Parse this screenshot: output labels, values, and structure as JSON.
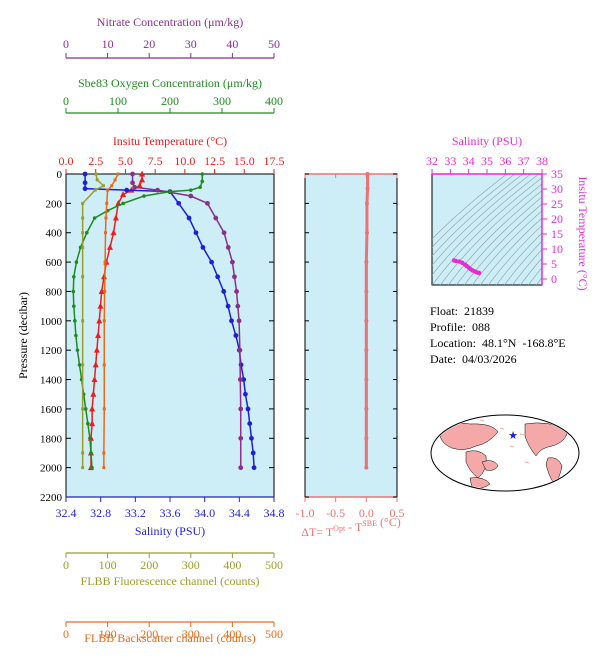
{
  "figure": {
    "panel_bg": "#cdeef7",
    "colors": {
      "nitrate": "#8b2f8b",
      "oxygen": "#1e8b1e",
      "temperature": "#ee1c1c",
      "salinity": "#1f1fd6",
      "fluorescence": "#9c9c2c",
      "backscatter": "#e56a1a",
      "dt": "#f07070",
      "magenta": "#e62ad6"
    }
  },
  "info": {
    "float": "Float:  21839",
    "profile": "Profile:  088",
    "location": "Location:  48.1°N  -168.8°E",
    "date": "Date:  04/03/2026"
  },
  "chart_data": [
    {
      "type": "line",
      "panel": "main-profile",
      "ylabel": "Pressure (decibar)",
      "ylim": [
        2200,
        0
      ],
      "y_ticks": [
        0,
        200,
        400,
        600,
        800,
        1000,
        1200,
        1400,
        1600,
        1800,
        2000,
        2200
      ],
      "axes": {
        "nitrate": {
          "label": "Nitrate Concentration (μm/kg)",
          "ticks": [
            0,
            10,
            20,
            30,
            40,
            50
          ],
          "range": [
            0,
            50
          ]
        },
        "oxygen": {
          "label": "Sbe83 Oxygen Concentration (μm/kg)",
          "ticks": [
            0,
            100,
            200,
            300,
            400
          ],
          "range": [
            0,
            400
          ]
        },
        "temperature": {
          "label": "Insitu Temperature (°C)",
          "ticks": [
            "0.0",
            "2.5",
            "5.0",
            "7.5",
            "10.0",
            "12.5",
            "15.0",
            "17.5"
          ],
          "range": [
            0,
            17.5
          ]
        },
        "salinity": {
          "label": "Salinity (PSU)",
          "ticks": [
            "32.4",
            "32.8",
            "33.2",
            "33.6",
            "34.0",
            "34.4",
            "34.8"
          ],
          "range": [
            32.4,
            34.8
          ]
        },
        "fluorescence": {
          "label": "FLBB Fluorescence channel (counts)",
          "ticks": [
            0,
            100,
            200,
            300,
            400,
            500
          ],
          "range": [
            0,
            500
          ]
        },
        "backscatter": {
          "label": "FLBB Backscatter channel (counts)",
          "ticks": [
            0,
            100,
            200,
            300,
            400,
            500
          ],
          "range": [
            0,
            500
          ]
        }
      },
      "series": [
        {
          "key": "temperature",
          "points": [
            [
              6.4,
              0
            ],
            [
              6.4,
              40
            ],
            [
              6.2,
              80
            ],
            [
              5.5,
              110
            ],
            [
              4.8,
              140
            ],
            [
              4.4,
              200
            ],
            [
              4.2,
              300
            ],
            [
              4.0,
              400
            ],
            [
              3.7,
              500
            ],
            [
              3.4,
              600
            ],
            [
              3.2,
              700
            ],
            [
              3.0,
              800
            ],
            [
              2.9,
              900
            ],
            [
              2.8,
              1000
            ],
            [
              2.7,
              1100
            ],
            [
              2.6,
              1200
            ],
            [
              2.5,
              1300
            ],
            [
              2.4,
              1400
            ],
            [
              2.3,
              1500
            ],
            [
              2.2,
              1600
            ],
            [
              2.2,
              1700
            ],
            [
              2.1,
              1800
            ],
            [
              2.1,
              1900
            ],
            [
              2.1,
              2000
            ]
          ]
        },
        {
          "key": "salinity",
          "points": [
            [
              32.62,
              0
            ],
            [
              32.62,
              60
            ],
            [
              32.62,
              100
            ],
            [
              33.1,
              110
            ],
            [
              33.6,
              120
            ],
            [
              33.7,
              200
            ],
            [
              33.82,
              300
            ],
            [
              33.9,
              400
            ],
            [
              33.98,
              500
            ],
            [
              34.08,
              600
            ],
            [
              34.15,
              700
            ],
            [
              34.22,
              800
            ],
            [
              34.27,
              900
            ],
            [
              34.31,
              1000
            ],
            [
              34.36,
              1100
            ],
            [
              34.4,
              1200
            ],
            [
              34.42,
              1300
            ],
            [
              34.45,
              1400
            ],
            [
              34.47,
              1500
            ],
            [
              34.5,
              1600
            ],
            [
              34.52,
              1700
            ],
            [
              34.54,
              1800
            ],
            [
              34.56,
              1900
            ],
            [
              34.57,
              2000
            ]
          ]
        },
        {
          "key": "nitrate",
          "points": [
            [
              16,
              0
            ],
            [
              16,
              60
            ],
            [
              16.5,
              90
            ],
            [
              22,
              110
            ],
            [
              30,
              150
            ],
            [
              34,
              200
            ],
            [
              36,
              300
            ],
            [
              38,
              400
            ],
            [
              39,
              500
            ],
            [
              40,
              600
            ],
            [
              40.5,
              700
            ],
            [
              41,
              800
            ],
            [
              41.3,
              900
            ],
            [
              41.6,
              1000
            ],
            [
              41.8,
              1200
            ],
            [
              41.9,
              1400
            ],
            [
              42,
              1600
            ],
            [
              42,
              1800
            ],
            [
              42,
              2000
            ]
          ]
        },
        {
          "key": "oxygen",
          "points": [
            [
              262,
              0
            ],
            [
              262,
              50
            ],
            [
              258,
              90
            ],
            [
              240,
              110
            ],
            [
              200,
              120
            ],
            [
              150,
              150
            ],
            [
              110,
              200
            ],
            [
              80,
              250
            ],
            [
              55,
              300
            ],
            [
              40,
              400
            ],
            [
              28,
              500
            ],
            [
              20,
              600
            ],
            [
              15,
              700
            ],
            [
              14,
              800
            ],
            [
              15,
              900
            ],
            [
              17,
              1000
            ],
            [
              19,
              1100
            ],
            [
              22,
              1200
            ],
            [
              26,
              1300
            ],
            [
              30,
              1400
            ],
            [
              34,
              1500
            ],
            [
              38,
              1600
            ],
            [
              42,
              1700
            ],
            [
              46,
              1800
            ],
            [
              48,
              1900
            ],
            [
              50,
              2000
            ]
          ]
        },
        {
          "key": "fluorescence",
          "points": [
            [
              72,
              0
            ],
            [
              75,
              40
            ],
            [
              90,
              80
            ],
            [
              70,
              110
            ],
            [
              40,
              200
            ],
            [
              40,
              300
            ],
            [
              40,
              400
            ],
            [
              40,
              500
            ],
            [
              40,
              700
            ],
            [
              40,
              1000
            ],
            [
              40,
              1300
            ],
            [
              40,
              1600
            ],
            [
              40,
              1900
            ],
            [
              40,
              2000
            ]
          ]
        },
        {
          "key": "backscatter",
          "points": [
            [
              125,
              0
            ],
            [
              118,
              40
            ],
            [
              110,
              80
            ],
            [
              100,
              110
            ],
            [
              98,
              200
            ],
            [
              96,
              300
            ],
            [
              95,
              400
            ],
            [
              94,
              600
            ],
            [
              93,
              800
            ],
            [
              92,
              1000
            ],
            [
              92,
              1300
            ],
            [
              92,
              1600
            ],
            [
              91,
              1900
            ],
            [
              91,
              2000
            ]
          ]
        }
      ]
    },
    {
      "type": "line",
      "panel": "delta-t",
      "xlabel": "ΔT= T<sup>Opt</sup> - T<sup>SBE</sup> (°C)",
      "xlim": [
        -1.0,
        0.5
      ],
      "x_ticks": [
        "-1.0",
        "-0.5",
        "0.0",
        "0.5"
      ],
      "series": [
        {
          "name": "dT",
          "points": [
            [
              0.02,
              0
            ],
            [
              0.02,
              100
            ],
            [
              0.01,
              200
            ],
            [
              0.01,
              400
            ],
            [
              0.0,
              600
            ],
            [
              0.0,
              800
            ],
            [
              0.0,
              1000
            ],
            [
              0.0,
              1200
            ],
            [
              0.0,
              1400
            ],
            [
              0.0,
              1600
            ],
            [
              0.0,
              1800
            ],
            [
              0.0,
              2000
            ]
          ]
        }
      ]
    },
    {
      "type": "scatter",
      "panel": "ts-diagram",
      "xlabel": "Salinity (PSU)",
      "ylabel": "Insitu Temperature (°C)",
      "xlim": [
        32,
        38
      ],
      "ylim": [
        -2,
        35
      ],
      "x_ticks": [
        "32",
        "33",
        "34",
        "35",
        "36",
        "37",
        "38"
      ],
      "y_ticks": [
        "0",
        "5",
        "10",
        "15",
        "20",
        "25",
        "30",
        "35"
      ],
      "series": [
        {
          "name": "TS",
          "points": [
            [
              33.2,
              6.2
            ],
            [
              33.3,
              6.0
            ],
            [
              33.5,
              5.8
            ],
            [
              33.65,
              5.4
            ],
            [
              33.8,
              4.8
            ],
            [
              33.9,
              4.3
            ],
            [
              34.0,
              3.8
            ],
            [
              34.1,
              3.3
            ],
            [
              34.2,
              2.9
            ],
            [
              34.3,
              2.6
            ],
            [
              34.4,
              2.3
            ],
            [
              34.5,
              2.1
            ],
            [
              34.57,
              2.0
            ]
          ]
        }
      ]
    }
  ]
}
